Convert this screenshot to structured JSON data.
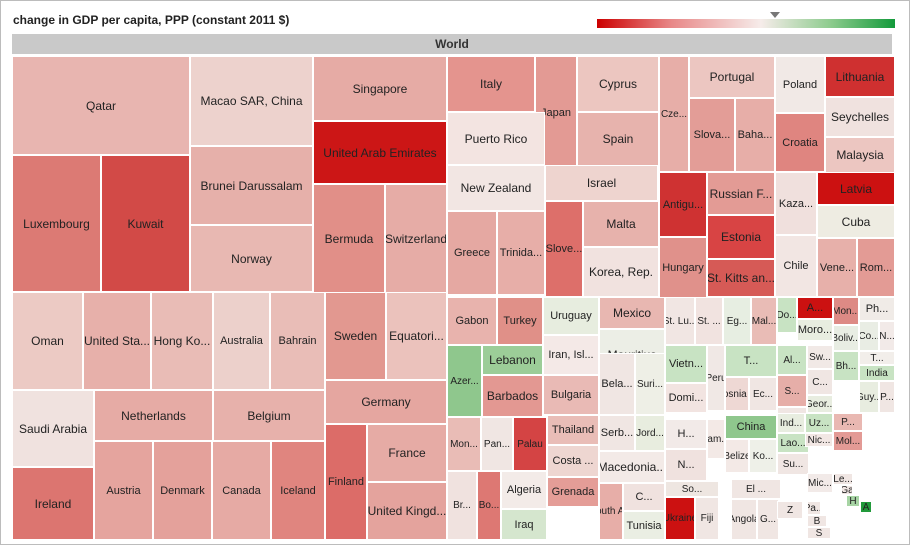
{
  "chart_data": {
    "type": "treemap",
    "title": "change in GDP per capita, PPP (constant 2011 $)",
    "group": "World",
    "color_legend": {
      "low_color": "#cc0000",
      "mid_color": "#f6ecea",
      "high_color": "#139a3b"
    },
    "tiles": [
      {
        "label": "Qatar",
        "color": "#e8b5b0"
      },
      {
        "label": "Macao SAR, China",
        "color": "#edd2cd"
      },
      {
        "label": "Singapore",
        "color": "#e6aba5"
      },
      {
        "label": "United Arab Emirates",
        "color": "#cc1616"
      },
      {
        "label": "Luxembourg",
        "color": "#dc7a74"
      },
      {
        "label": "Kuwait",
        "color": "#d24a47"
      },
      {
        "label": "Brunei Darussalam",
        "color": "#e6b0aa"
      },
      {
        "label": "Norway",
        "color": "#e8b8b2"
      },
      {
        "label": "Bermuda",
        "color": "#e18f88"
      },
      {
        "label": "Switzerland",
        "color": "#e6aca6"
      },
      {
        "label": "Oman",
        "color": "#eccac4"
      },
      {
        "label": "United Sta...",
        "color": "#e7b0aa"
      },
      {
        "label": "Hong Ko...",
        "color": "#e9bcb6"
      },
      {
        "label": "Australia",
        "color": "#ecd0cb"
      },
      {
        "label": "Bahrain",
        "color": "#e9bdb7"
      },
      {
        "label": "Sweden",
        "color": "#e29890"
      },
      {
        "label": "Equatori...",
        "color": "#ebc2bc"
      },
      {
        "label": "Saudi Arabia",
        "color": "#f0e2df"
      },
      {
        "label": "Netherlands",
        "color": "#e6aba5"
      },
      {
        "label": "Belgium",
        "color": "#e7b1ab"
      },
      {
        "label": "Germany",
        "color": "#e5a6a0"
      },
      {
        "label": "Ireland",
        "color": "#dc7570"
      },
      {
        "label": "Austria",
        "color": "#e5a49e"
      },
      {
        "label": "Denmark",
        "color": "#e4a19b"
      },
      {
        "label": "Canada",
        "color": "#e6aaa4"
      },
      {
        "label": "Iceland",
        "color": "#e0857f"
      },
      {
        "label": "Finland",
        "color": "#dc6c68"
      },
      {
        "label": "France",
        "color": "#e6aba5"
      },
      {
        "label": "United Kingd...",
        "color": "#e4a39d"
      },
      {
        "label": "Italy",
        "color": "#e4948e"
      },
      {
        "label": "Japan",
        "color": "#e39a94"
      },
      {
        "label": "Cyprus",
        "color": "#ecc6c0"
      },
      {
        "label": "Spain",
        "color": "#e7b3ad"
      },
      {
        "label": "Puerto Rico",
        "color": "#f3e4e1"
      },
      {
        "label": "New Zealand",
        "color": "#f2e6e3"
      },
      {
        "label": "Israel",
        "color": "#eed4cf"
      },
      {
        "label": "Greece",
        "color": "#e5a8a2"
      },
      {
        "label": "Trinida...",
        "color": "#e7aea8"
      },
      {
        "label": "Slove...",
        "color": "#dd6f6a"
      },
      {
        "label": "Malta",
        "color": "#e7b2ac"
      },
      {
        "label": "Korea, Rep.",
        "color": "#f1e2df"
      },
      {
        "label": "Cze...",
        "color": "#e7aea8"
      },
      {
        "label": "Portugal",
        "color": "#ecc6c1"
      },
      {
        "label": "Slova...",
        "color": "#e39d97"
      },
      {
        "label": "Baha...",
        "color": "#e7aea8"
      },
      {
        "label": "Poland",
        "color": "#f1e9e6"
      },
      {
        "label": "Lithuania",
        "color": "#cf3030"
      },
      {
        "label": "Seychelles",
        "color": "#f0e2df"
      },
      {
        "label": "Croatia",
        "color": "#df8580"
      },
      {
        "label": "Malaysia",
        "color": "#ecc6c1"
      },
      {
        "label": "Antigu...",
        "color": "#cf3232"
      },
      {
        "label": "Russian F...",
        "color": "#e39b95"
      },
      {
        "label": "Estonia",
        "color": "#d84444"
      },
      {
        "label": "Hungary",
        "color": "#e0918b"
      },
      {
        "label": "St. Kitts an...",
        "color": "#d65a56"
      },
      {
        "label": "Kaza...",
        "color": "#f0e0dd"
      },
      {
        "label": "Latvia",
        "color": "#cc1111"
      },
      {
        "label": "Cuba",
        "color": "#eeece2"
      },
      {
        "label": "Chile",
        "color": "#f2e6e3"
      },
      {
        "label": "Vene...",
        "color": "#e7b0aa"
      },
      {
        "label": "Rom...",
        "color": "#e39b95"
      },
      {
        "label": "Gabon",
        "color": "#e8b3ad"
      },
      {
        "label": "Turkey",
        "color": "#e09088"
      },
      {
        "label": "Uruguay",
        "color": "#e7eddf"
      },
      {
        "label": "Mexico",
        "color": "#e8b7b1"
      },
      {
        "label": "Lebanon",
        "color": "#9ccd98"
      },
      {
        "label": "Iran, Isl...",
        "color": "#f4e9e7"
      },
      {
        "label": "Mauritius",
        "color": "#eceee6"
      },
      {
        "label": "Azer...",
        "color": "#8fc78d"
      },
      {
        "label": "Barbados",
        "color": "#e39892"
      },
      {
        "label": "Bulgaria",
        "color": "#e9bab5"
      },
      {
        "label": "Bela...",
        "color": "#f0e6e3"
      },
      {
        "label": "Suri...",
        "color": "#eeefe6"
      },
      {
        "label": "Mon...",
        "color": "#e9bcb6"
      },
      {
        "label": "Pan...",
        "color": "#f0e6e3"
      },
      {
        "label": "Palau",
        "color": "#d44444"
      },
      {
        "label": "Thailand",
        "color": "#e9bdb7"
      },
      {
        "label": "Serb...",
        "color": "#f0e6e3"
      },
      {
        "label": "Jord...",
        "color": "#e8eddf"
      },
      {
        "label": "Costa ...",
        "color": "#eed6d1"
      },
      {
        "label": "Macedonia...",
        "color": "#f3eae7"
      },
      {
        "label": "Br...",
        "color": "#f0e2df"
      },
      {
        "label": "Bo...",
        "color": "#dd7873"
      },
      {
        "label": "Algeria",
        "color": "#f3ebe8"
      },
      {
        "label": "Iraq",
        "color": "#d5e6ce"
      },
      {
        "label": "Grenada",
        "color": "#e49d97"
      },
      {
        "label": "South A...",
        "color": "#e7aea8"
      },
      {
        "label": "C...",
        "color": "#f0e2df"
      },
      {
        "label": "Tunisia",
        "color": "#eaeee3"
      },
      {
        "label": "St. Lu...",
        "color": "#f1e6e3"
      },
      {
        "label": "St. ...",
        "color": "#f1e3e0"
      },
      {
        "label": "Eg...",
        "color": "#e7eee2"
      },
      {
        "label": "Mal...",
        "color": "#e9bcb6"
      },
      {
        "label": "Do...",
        "color": "#c8e3c3"
      },
      {
        "label": "A...",
        "color": "#cc1111"
      },
      {
        "label": "Moro...",
        "color": "#e8ede0"
      },
      {
        "label": "Mon...",
        "color": "#dd8a85"
      },
      {
        "label": "Ph...",
        "color": "#f0ebe7"
      },
      {
        "label": "Boliv...",
        "color": "#e8ede3"
      },
      {
        "label": "Co...",
        "color": "#e9ede4"
      },
      {
        "label": "N...",
        "color": "#f2eae8"
      },
      {
        "label": "T...",
        "color": "#f2eeea"
      },
      {
        "label": "India",
        "color": "#c8e3c3"
      },
      {
        "label": "Vietn...",
        "color": "#c8e3c3"
      },
      {
        "label": "Domi...",
        "color": "#f2e4e1"
      },
      {
        "label": "Peru",
        "color": "#f0e8e5"
      },
      {
        "label": "T...",
        "color": "#c8e3c3"
      },
      {
        "label": "Bosnia ...",
        "color": "#eed8d4"
      },
      {
        "label": "Ec...",
        "color": "#f0e6e3"
      },
      {
        "label": "Al...",
        "color": "#c8e3c3"
      },
      {
        "label": "Sw...",
        "color": "#f1e9e6"
      },
      {
        "label": "Bh...",
        "color": "#c8e3c3"
      },
      {
        "label": "S...",
        "color": "#e6aea8"
      },
      {
        "label": "C...",
        "color": "#f0e6e3"
      },
      {
        "label": "Geor...",
        "color": "#e8ede0"
      },
      {
        "label": "Guy...",
        "color": "#e8ede0"
      },
      {
        "label": "P...",
        "color": "#f0e6e3"
      },
      {
        "label": "F...",
        "color": "#f0e6e3"
      },
      {
        "label": "H...",
        "color": "#f2eae8"
      },
      {
        "label": "Jam...",
        "color": "#f3e9e6"
      },
      {
        "label": "N...",
        "color": "#f0e2df"
      },
      {
        "label": "China",
        "color": "#8fc78d"
      },
      {
        "label": "Belize",
        "color": "#f3e9e6"
      },
      {
        "label": "Ko...",
        "color": "#eef0e8"
      },
      {
        "label": "Ind...",
        "color": "#e8ede0"
      },
      {
        "label": "Uz...",
        "color": "#c8e3c3"
      },
      {
        "label": "Lao...",
        "color": "#c8e3c3"
      },
      {
        "label": "Nic...",
        "color": "#f2e7e4"
      },
      {
        "label": "Mol...",
        "color": "#e39a95"
      },
      {
        "label": "Su...",
        "color": "#f0e6e3"
      },
      {
        "label": "So...",
        "color": "#eee6e1"
      },
      {
        "label": "Ukraine",
        "color": "#cc1111"
      },
      {
        "label": "Fiji",
        "color": "#f0e6e3"
      },
      {
        "label": "El ...",
        "color": "#f0e6e3"
      },
      {
        "label": "Angola",
        "color": "#f0e6e3"
      },
      {
        "label": "G...",
        "color": "#f0e6e3"
      },
      {
        "label": "P...",
        "color": "#e9b8b2"
      },
      {
        "label": "Mic...",
        "color": "#f2eae8"
      },
      {
        "label": "Le...",
        "color": "#f0e6e3"
      },
      {
        "label": "Ga",
        "color": "#f0e6e3"
      },
      {
        "label": "H",
        "color": "#a7d4a4"
      },
      {
        "label": "A",
        "color": "#229a3b"
      },
      {
        "label": "Z",
        "color": "#f0e6e3"
      },
      {
        "label": "Pa...",
        "color": "#f0e6e3"
      },
      {
        "label": "B",
        "color": "#f0e6e3"
      },
      {
        "label": "S",
        "color": "#f0e6e3"
      },
      {
        "label": "C",
        "color": "#f0e6e3"
      }
    ]
  }
}
